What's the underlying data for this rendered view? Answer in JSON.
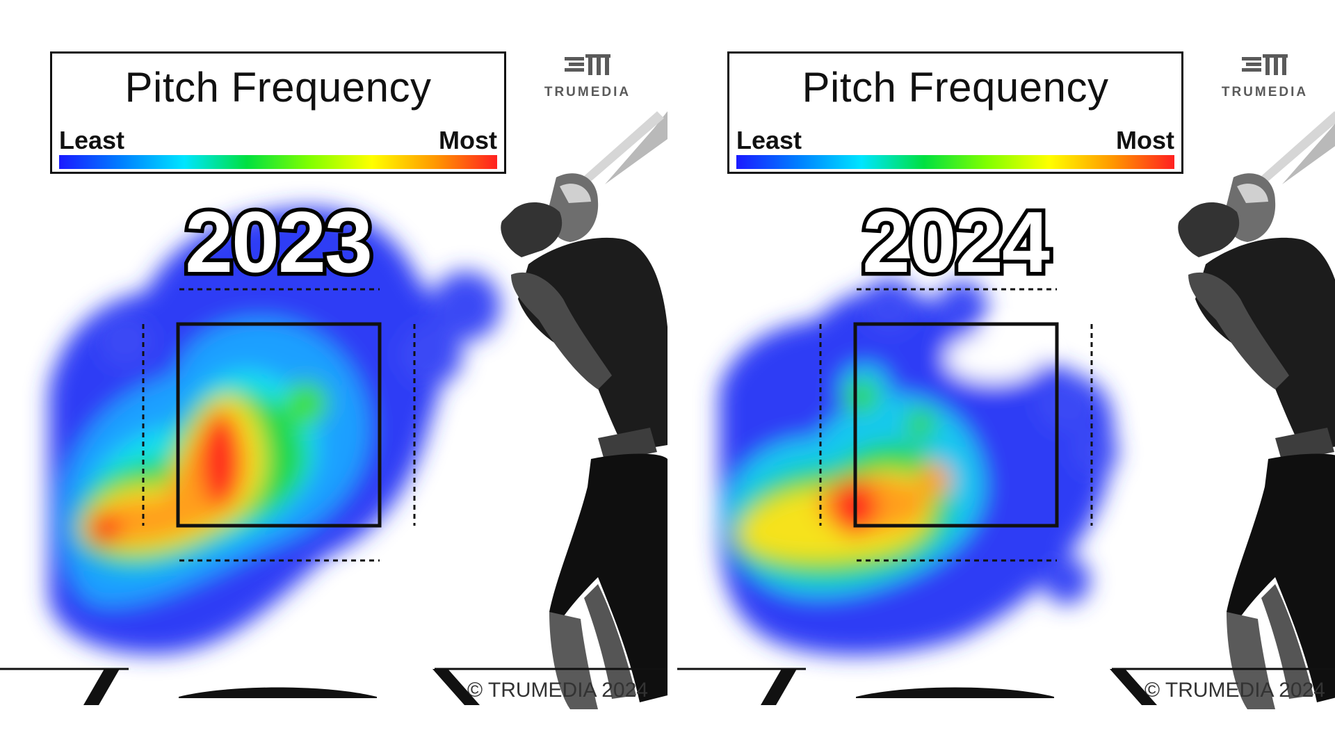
{
  "legend": {
    "title": "Pitch Frequency",
    "low_label": "Least",
    "high_label": "Most",
    "gradient_colors": [
      "#1a1aff",
      "#0080ff",
      "#00e5ff",
      "#00e040",
      "#80ff00",
      "#ffff00",
      "#ff9900",
      "#ff2020"
    ]
  },
  "brand": {
    "name": "TRUMEDIA",
    "copyright": "© TRUMEDIA 2024"
  },
  "chart_data": [
    {
      "type": "heatmap",
      "title": "Pitch Frequency",
      "label": "2023",
      "colorscale": "blue (least) to red (most)",
      "regions": [
        {
          "zone": "inner-left strike zone, mid height",
          "level": 1.0
        },
        {
          "zone": "low and inside, outside zone",
          "level": 0.9
        },
        {
          "zone": "center-right strike zone",
          "level": 0.55
        },
        {
          "zone": "upper and outer edges",
          "level": 0.2
        }
      ]
    },
    {
      "type": "heatmap",
      "title": "Pitch Frequency",
      "label": "2024",
      "colorscale": "blue (least) to red (most)",
      "regions": [
        {
          "zone": "low-left corner of strike zone",
          "level": 1.0
        },
        {
          "zone": "low and inside, outside zone",
          "level": 0.8
        },
        {
          "zone": "low-center strike zone",
          "level": 0.75
        },
        {
          "zone": "upper strike zone",
          "level": 0.3
        },
        {
          "zone": "upper-right strike zone",
          "level": 0.0
        }
      ]
    }
  ]
}
